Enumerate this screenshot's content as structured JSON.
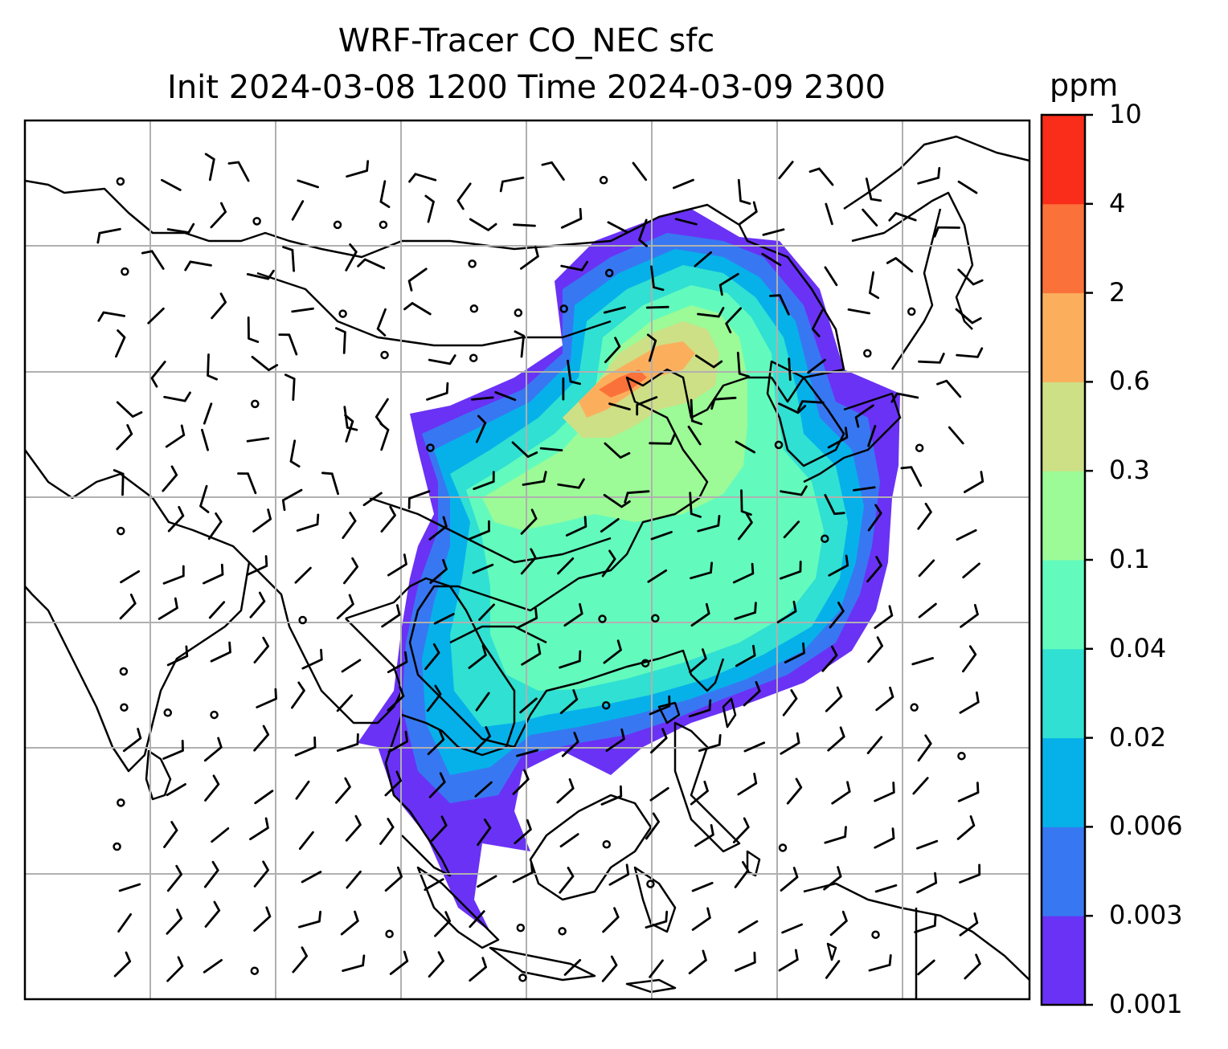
{
  "title": {
    "line1": "WRF-Tracer CO_NEC sfc",
    "line2": "Init 2024-03-08 1200 Time 2024-03-09 2300"
  },
  "colorbar": {
    "unit": "ppm",
    "levels": [
      {
        "label": "0.001",
        "color": "#6a32f5"
      },
      {
        "label": "0.003",
        "color": "#3778f2"
      },
      {
        "label": "0.006",
        "color": "#06b1ea"
      },
      {
        "label": "0.02",
        "color": "#30e0d2"
      },
      {
        "label": "0.04",
        "color": "#62fbbd"
      },
      {
        "label": "0.1",
        "color": "#9cfa97"
      },
      {
        "label": "0.3",
        "color": "#cde086"
      },
      {
        "label": "0.6",
        "color": "#fbaf5d"
      },
      {
        "label": "2",
        "color": "#fb713a"
      },
      {
        "label": "4",
        "color": "#f92d19"
      },
      {
        "label": "10",
        "color": null
      }
    ]
  },
  "map": {
    "projection": "lat-lon",
    "gridlines": true,
    "coastlines": true,
    "wind_barbs": true,
    "field": "CO_NEC tracer concentration at surface",
    "plume_region": "East Asia (northern China to South China Sea)"
  }
}
